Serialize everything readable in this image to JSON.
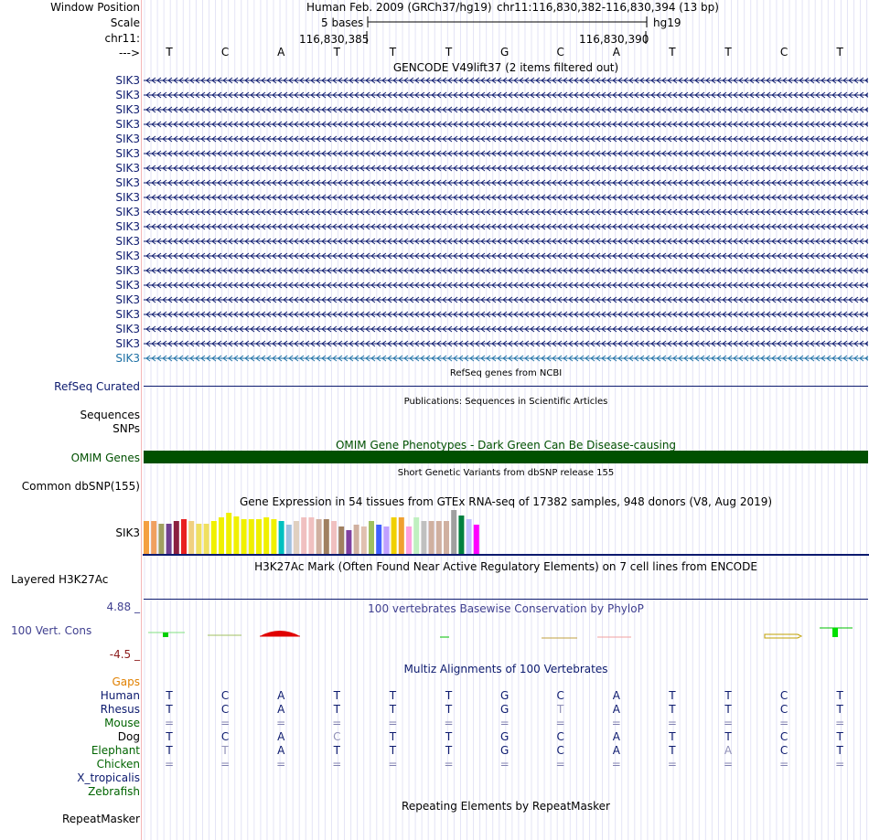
{
  "header": {
    "window_position_label": "Window Position",
    "scale_label": "Scale",
    "chrom_label": "chr11:",
    "arrow_label": "--->",
    "assembly": "Human Feb. 2009 (GRCh37/hg19)",
    "position": "chr11:116,830,382-116,830,394 (13 bp)",
    "scale_text": "5 bases",
    "db": "hg19",
    "coord_left": "116,830,385",
    "coord_right": "116,830,390"
  },
  "sequence": [
    "T",
    "C",
    "A",
    "T",
    "T",
    "T",
    "G",
    "C",
    "A",
    "T",
    "T",
    "C",
    "T"
  ],
  "gencode": {
    "title": "GENCODE V49lift37 (2 items filtered out)",
    "gene_labels": [
      "SIK3",
      "SIK3",
      "SIK3",
      "SIK3",
      "SIK3",
      "SIK3",
      "SIK3",
      "SIK3",
      "SIK3",
      "SIK3",
      "SIK3",
      "SIK3",
      "SIK3",
      "SIK3",
      "SIK3",
      "SIK3",
      "SIK3",
      "SIK3",
      "SIK3",
      "SIK3"
    ]
  },
  "refseq": {
    "title": "RefSeq genes from NCBI",
    "label": "RefSeq Curated"
  },
  "publications": {
    "title": "Publications: Sequences in Scientific Articles",
    "label_line1": "Sequences",
    "label_line2": "SNPs"
  },
  "omim": {
    "title": "OMIM Gene Phenotypes - Dark Green Can Be Disease-causing",
    "label": "OMIM Genes",
    "color": "#005000"
  },
  "dbsnp": {
    "title": "Short Genetic Variants from dbSNP release 155",
    "label": "Common dbSNP(155)"
  },
  "gtex": {
    "title": "Gene Expression in 54 tissues from GTEx RNA-seq of 17382 samples, 948 donors (V8, Aug 2019)",
    "label": "SIK3",
    "bars": [
      {
        "c": "#f4a040",
        "v": 0.72
      },
      {
        "c": "#f0a060",
        "v": 0.72
      },
      {
        "c": "#a0a060",
        "v": 0.66
      },
      {
        "c": "#704090",
        "v": 0.66
      },
      {
        "c": "#8b2040",
        "v": 0.72
      },
      {
        "c": "#e82020",
        "v": 0.76
      },
      {
        "c": "#f0d080",
        "v": 0.72
      },
      {
        "c": "#f0e060",
        "v": 0.66
      },
      {
        "c": "#f0e060",
        "v": 0.66
      },
      {
        "c": "#f0f000",
        "v": 0.72
      },
      {
        "c": "#f0f000",
        "v": 0.8
      },
      {
        "c": "#f0f000",
        "v": 0.9
      },
      {
        "c": "#f0f000",
        "v": 0.82
      },
      {
        "c": "#f0f000",
        "v": 0.76
      },
      {
        "c": "#f0f000",
        "v": 0.76
      },
      {
        "c": "#f0f000",
        "v": 0.76
      },
      {
        "c": "#f0f000",
        "v": 0.8
      },
      {
        "c": "#f0f000",
        "v": 0.76
      },
      {
        "c": "#00c0c0",
        "v": 0.72
      },
      {
        "c": "#a0c0e0",
        "v": 0.64
      },
      {
        "c": "#e0d0c0",
        "v": 0.72
      },
      {
        "c": "#f0c0c0",
        "v": 0.8
      },
      {
        "c": "#f0c0c0",
        "v": 0.8
      },
      {
        "c": "#d0b0a0",
        "v": 0.76
      },
      {
        "c": "#a08060",
        "v": 0.76
      },
      {
        "c": "#f0c0c0",
        "v": 0.72
      },
      {
        "c": "#a08060",
        "v": 0.6
      },
      {
        "c": "#8040a0",
        "v": 0.52
      },
      {
        "c": "#d0b0a0",
        "v": 0.64
      },
      {
        "c": "#e0c0b0",
        "v": 0.6
      },
      {
        "c": "#a0c060",
        "v": 0.72
      },
      {
        "c": "#4060ff",
        "v": 0.64
      },
      {
        "c": "#c0a0ff",
        "v": 0.6
      },
      {
        "c": "#f0d000",
        "v": 0.8
      },
      {
        "c": "#f0a030",
        "v": 0.8
      },
      {
        "c": "#ffa0e0",
        "v": 0.6
      },
      {
        "c": "#c0f0c0",
        "v": 0.8
      },
      {
        "c": "#c0c0c0",
        "v": 0.72
      },
      {
        "c": "#d0b0a0",
        "v": 0.72
      },
      {
        "c": "#d0b0a0",
        "v": 0.72
      },
      {
        "c": "#d0b0a0",
        "v": 0.72
      },
      {
        "c": "#a0a0a0",
        "v": 0.96
      },
      {
        "c": "#008040",
        "v": 0.84
      },
      {
        "c": "#c0c0ff",
        "v": 0.76
      },
      {
        "c": "#ff00ff",
        "v": 0.64
      }
    ]
  },
  "h3k27ac": {
    "title": "H3K27Ac Mark (Often Found Near Active Regulatory Elements) on 7 cell lines from ENCODE",
    "label": "Layered H3K27Ac"
  },
  "conservation": {
    "title": "100 vertebrates Basewise Conservation by PhyloP",
    "label": "100 Vert. Cons",
    "ymax": "4.88 _",
    "ymin": "-4.5 _",
    "max_color": "#404090",
    "min_color": "#8b1a1a"
  },
  "multiz": {
    "title": "Multiz Alignments of 100 Vertebrates",
    "gaps_label": "Gaps",
    "species": [
      {
        "name": "Human",
        "color": "#0c1a6e",
        "row": [
          "T",
          "C",
          "A",
          "T",
          "T",
          "T",
          "G",
          "C",
          "A",
          "T",
          "T",
          "C",
          "T"
        ]
      },
      {
        "name": "Rhesus",
        "color": "#0c1a6e",
        "row": [
          "T",
          "C",
          "A",
          "T",
          "T",
          "T",
          "G",
          "T",
          "A",
          "T",
          "T",
          "C",
          "T"
        ]
      },
      {
        "name": "Mouse",
        "color": "#006400",
        "row": [
          "=",
          "=",
          "=",
          "=",
          "=",
          "=",
          "=",
          "=",
          "=",
          "=",
          "=",
          "=",
          "="
        ]
      },
      {
        "name": "Dog",
        "color": "#000000",
        "row": [
          "T",
          "C",
          "A",
          "C",
          "T",
          "T",
          "G",
          "C",
          "A",
          "T",
          "T",
          "C",
          "T"
        ]
      },
      {
        "name": "Elephant",
        "color": "#006400",
        "row": [
          "T",
          "T",
          "A",
          "T",
          "T",
          "T",
          "G",
          "C",
          "A",
          "T",
          "A",
          "C",
          "T"
        ]
      },
      {
        "name": "Chicken",
        "color": "#006400",
        "row": [
          "=",
          "=",
          "=",
          "=",
          "=",
          "=",
          "=",
          "=",
          "=",
          "=",
          "=",
          "=",
          "="
        ]
      },
      {
        "name": "X_tropicalis",
        "color": "#0c1a6e",
        "row": [
          "",
          "",
          "",
          "",
          "",
          "",
          "",
          "",
          "",
          "",
          "",
          "",
          ""
        ]
      },
      {
        "name": "Zebrafish",
        "color": "#006400",
        "row": [
          "",
          "",
          "",
          "",
          "",
          "",
          "",
          "",
          "",
          "",
          "",
          "",
          ""
        ]
      }
    ]
  },
  "repeatmasker": {
    "title": "Repeating Elements by RepeatMasker",
    "label": "RepeatMasker"
  }
}
